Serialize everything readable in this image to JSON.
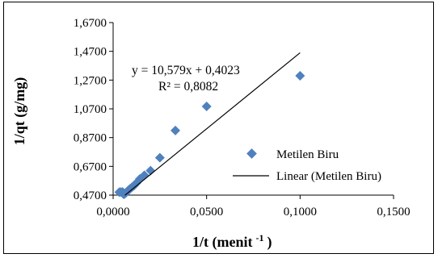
{
  "chart_data": {
    "type": "scatter",
    "xlabel": "1/t (menit",
    "xlabel_sup": "-1",
    "xlabel_close": ")",
    "ylabel": "1/qt  (g/mg)",
    "xlim": [
      0,
      0.15
    ],
    "ylim": [
      0.47,
      1.67
    ],
    "x_ticks": [
      0,
      0.05,
      0.1,
      0.15
    ],
    "x_tick_labels": [
      "0,0000",
      "0,0500",
      "0,1000",
      "0,1500"
    ],
    "y_ticks": [
      0.47,
      0.67,
      0.87,
      1.07,
      1.27,
      1.47,
      1.67
    ],
    "y_tick_labels": [
      "0,4700",
      "0,6700",
      "0,8700",
      "1,0700",
      "1,2700",
      "1,4700",
      "1,6700"
    ],
    "grid": false,
    "legend_position": "right",
    "series": [
      {
        "name": "Metilen Biru",
        "color": "#4f81bd",
        "marker": "diamond",
        "points": [
          [
            0.1,
            1.3
          ],
          [
            0.05,
            1.087
          ],
          [
            0.0333,
            0.919
          ],
          [
            0.025,
            0.73
          ],
          [
            0.02,
            0.64
          ],
          [
            0.0167,
            0.608
          ],
          [
            0.0143,
            0.583
          ],
          [
            0.0125,
            0.555
          ],
          [
            0.0111,
            0.535
          ],
          [
            0.01,
            0.524
          ],
          [
            0.0091,
            0.515
          ],
          [
            0.0083,
            0.505
          ],
          [
            0.0077,
            0.497
          ],
          [
            0.0071,
            0.49
          ],
          [
            0.0067,
            0.485
          ],
          [
            0.0063,
            0.48
          ],
          [
            0.0059,
            0.477
          ],
          [
            0.0056,
            0.476
          ],
          [
            0.0053,
            0.488
          ],
          [
            0.005,
            0.492
          ],
          [
            0.004,
            0.492
          ],
          [
            0.0033,
            0.49
          ]
        ]
      }
    ],
    "trendline": {
      "name": "Linear (Metilen Biru)",
      "slope": 10.579,
      "intercept": 0.4023,
      "x_range": [
        0.0063,
        0.1
      ],
      "color": "#000000",
      "equation_text": "y = 10,579x + 0,4023",
      "r2_text": "R² = 0,8082"
    }
  }
}
